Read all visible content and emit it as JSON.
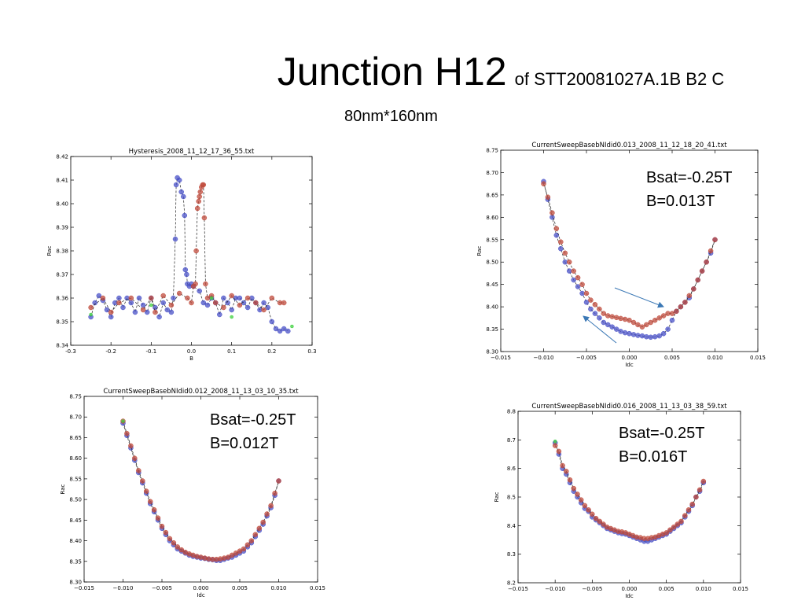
{
  "slide": {
    "title": "Junction H12",
    "title_suffix": "of STT20081027A.1B B2 C",
    "subtitle": "80nm*160nm"
  },
  "colors": {
    "series_blue": "#4a52c8",
    "series_red": "#c04b3c",
    "series_green": "#3fd23f",
    "arrow": "#3b78b5"
  },
  "chart_data": [
    {
      "type": "scatter",
      "title": "Hysteresis_2008_11_12_17_36_55.txt",
      "xlabel": "B",
      "ylabel": "Rac",
      "xlim": [
        -0.3,
        0.3
      ],
      "ylim": [
        8.34,
        8.42
      ],
      "xticks": [
        "-0.3",
        "-0.2",
        "-0.1",
        "0.0",
        "0.1",
        "0.2",
        "0.3"
      ],
      "yticks": [
        "8.34",
        "8.35",
        "8.36",
        "8.37",
        "8.38",
        "8.39",
        "8.40",
        "8.41",
        "8.42"
      ],
      "series": [
        {
          "color": "blue",
          "x": [
            -0.25,
            -0.24,
            -0.23,
            -0.22,
            -0.21,
            -0.2,
            -0.19,
            -0.18,
            -0.17,
            -0.16,
            -0.15,
            -0.14,
            -0.13,
            -0.12,
            -0.11,
            -0.1,
            -0.09,
            -0.08,
            -0.07,
            -0.06,
            -0.05,
            -0.045,
            -0.04,
            -0.038,
            -0.035,
            -0.03,
            -0.025,
            -0.02,
            -0.017,
            -0.015,
            -0.012,
            -0.01,
            -0.005,
            0.0,
            0.005,
            0.02,
            0.03,
            0.04,
            0.05,
            0.06,
            0.07,
            0.08,
            0.09,
            0.1,
            0.11,
            0.12,
            0.13,
            0.14,
            0.15,
            0.16,
            0.17,
            0.18,
            0.19,
            0.2,
            0.21,
            0.22,
            0.23,
            0.24
          ],
          "y": [
            8.352,
            8.358,
            8.361,
            8.359,
            8.355,
            8.352,
            8.358,
            8.36,
            8.356,
            8.36,
            8.358,
            8.354,
            8.36,
            8.357,
            8.354,
            8.36,
            8.356,
            8.352,
            8.358,
            8.355,
            8.354,
            8.36,
            8.385,
            8.408,
            8.411,
            8.41,
            8.405,
            8.403,
            8.395,
            8.372,
            8.37,
            8.366,
            8.365,
            8.366,
            8.365,
            8.363,
            8.358,
            8.357,
            8.36,
            8.358,
            8.353,
            8.36,
            8.358,
            8.355,
            8.36,
            8.36,
            8.358,
            8.356,
            8.36,
            8.358,
            8.355,
            8.358,
            8.356,
            8.35,
            8.347,
            8.346,
            8.347,
            8.346
          ]
        },
        {
          "color": "red",
          "x": [
            -0.25,
            -0.22,
            -0.2,
            -0.18,
            -0.15,
            -0.12,
            -0.1,
            -0.09,
            -0.07,
            -0.05,
            -0.03,
            -0.01,
            0.0,
            0.005,
            0.01,
            0.012,
            0.015,
            0.018,
            0.02,
            0.022,
            0.025,
            0.028,
            0.03,
            0.032,
            0.035,
            0.04,
            0.05,
            0.06,
            0.08,
            0.1,
            0.12,
            0.14,
            0.16,
            0.18,
            0.2,
            0.22,
            0.23
          ],
          "y": [
            8.356,
            8.36,
            8.354,
            8.358,
            8.36,
            8.355,
            8.36,
            8.354,
            8.361,
            8.357,
            8.362,
            8.36,
            8.358,
            8.365,
            8.366,
            8.38,
            8.398,
            8.401,
            8.403,
            8.405,
            8.407,
            8.408,
            8.408,
            8.394,
            8.366,
            8.36,
            8.361,
            8.358,
            8.356,
            8.361,
            8.357,
            8.36,
            8.358,
            8.355,
            8.36,
            8.358,
            8.358
          ]
        },
        {
          "color": "green",
          "x": [
            -0.25,
            -0.1,
            0.05,
            0.1,
            0.25
          ],
          "y": [
            8.353,
            8.357,
            8.36,
            8.352,
            8.348
          ]
        }
      ]
    },
    {
      "type": "scatter",
      "title": "CurrentSweepBasebNIdid0.013_2008_11_12_18_20_41.txt",
      "xlabel": "Idc",
      "ylabel": "Rac",
      "xlim": [
        -0.015,
        0.015
      ],
      "ylim": [
        8.3,
        8.75
      ],
      "xticks": [
        "−0.015",
        "−0.010",
        "−0.005",
        "0.000",
        "0.005",
        "0.010",
        "0.015"
      ],
      "yticks": [
        "8.30",
        "8.35",
        "8.40",
        "8.45",
        "8.50",
        "8.55",
        "8.60",
        "8.65",
        "8.70",
        "8.75"
      ],
      "annotations": [
        "Bsat=-0.25T",
        "B=0.013T"
      ],
      "series": [
        {
          "color": "blue",
          "x": [
            -0.01,
            -0.0095,
            -0.009,
            -0.0085,
            -0.008,
            -0.0075,
            -0.007,
            -0.0065,
            -0.006,
            -0.0055,
            -0.005,
            -0.0045,
            -0.004,
            -0.0035,
            -0.003,
            -0.0025,
            -0.002,
            -0.0015,
            -0.001,
            -0.0005,
            0.0,
            0.0005,
            0.001,
            0.0015,
            0.002,
            0.0025,
            0.003,
            0.0035,
            0.004,
            0.0045,
            0.005,
            0.0055,
            0.006,
            0.0065,
            0.007,
            0.0075,
            0.008,
            0.0085,
            0.009,
            0.0095,
            0.01
          ],
          "y": [
            8.68,
            8.64,
            8.6,
            8.56,
            8.53,
            8.5,
            8.48,
            8.46,
            8.445,
            8.43,
            8.41,
            8.395,
            8.385,
            8.375,
            8.365,
            8.36,
            8.355,
            8.35,
            8.345,
            8.342,
            8.34,
            8.338,
            8.336,
            8.335,
            8.333,
            8.332,
            8.333,
            8.335,
            8.34,
            8.35,
            8.37,
            8.39,
            8.4,
            8.41,
            8.42,
            8.44,
            8.46,
            8.48,
            8.5,
            8.52,
            8.55
          ]
        },
        {
          "color": "red",
          "x": [
            -0.01,
            -0.0095,
            -0.009,
            -0.0085,
            -0.008,
            -0.0075,
            -0.007,
            -0.0065,
            -0.006,
            -0.0055,
            -0.005,
            -0.0045,
            -0.004,
            -0.0035,
            -0.003,
            -0.0025,
            -0.002,
            -0.0015,
            -0.001,
            -0.0005,
            0.0,
            0.0005,
            0.001,
            0.0015,
            0.002,
            0.0025,
            0.003,
            0.0035,
            0.004,
            0.0045,
            0.005,
            0.0055,
            0.006,
            0.0065,
            0.007,
            0.0075,
            0.008,
            0.0085,
            0.009,
            0.0095,
            0.01
          ],
          "y": [
            8.675,
            8.645,
            8.61,
            8.575,
            8.545,
            8.52,
            8.5,
            8.48,
            8.465,
            8.45,
            8.43,
            8.415,
            8.405,
            8.395,
            8.385,
            8.38,
            8.378,
            8.376,
            8.374,
            8.372,
            8.37,
            8.365,
            8.36,
            8.355,
            8.36,
            8.365,
            8.37,
            8.375,
            8.38,
            8.385,
            8.385,
            8.39,
            8.4,
            8.41,
            8.425,
            8.44,
            8.46,
            8.48,
            8.5,
            8.525,
            8.55
          ]
        }
      ]
    },
    {
      "type": "scatter",
      "title": "CurrentSweepBasebNIdid0.012_2008_11_13_03_10_35.txt",
      "xlabel": "Idc",
      "ylabel": "Rac",
      "xlim": [
        -0.015,
        0.015
      ],
      "ylim": [
        8.3,
        8.75
      ],
      "xticks": [
        "−0.015",
        "−0.010",
        "−0.005",
        "0.000",
        "0.005",
        "0.010",
        "0.015"
      ],
      "yticks": [
        "8.30",
        "8.35",
        "8.40",
        "8.45",
        "8.50",
        "8.55",
        "8.60",
        "8.65",
        "8.70",
        "8.75"
      ],
      "annotations": [
        "Bsat=-0.25T",
        "B=0.012T"
      ],
      "series": [
        {
          "color": "blue",
          "x": [
            -0.01,
            -0.0095,
            -0.009,
            -0.0085,
            -0.008,
            -0.0075,
            -0.007,
            -0.0065,
            -0.006,
            -0.0055,
            -0.005,
            -0.0045,
            -0.004,
            -0.0035,
            -0.003,
            -0.0025,
            -0.002,
            -0.0015,
            -0.001,
            -0.0005,
            0.0,
            0.0005,
            0.001,
            0.0015,
            0.002,
            0.0025,
            0.003,
            0.0035,
            0.004,
            0.0045,
            0.005,
            0.0055,
            0.006,
            0.0065,
            0.007,
            0.0075,
            0.008,
            0.0085,
            0.009,
            0.0095,
            0.01
          ],
          "y": [
            8.685,
            8.655,
            8.625,
            8.595,
            8.565,
            8.54,
            8.515,
            8.49,
            8.47,
            8.45,
            8.43,
            8.415,
            8.4,
            8.39,
            8.38,
            8.375,
            8.37,
            8.365,
            8.362,
            8.36,
            8.358,
            8.357,
            8.355,
            8.354,
            8.352,
            8.352,
            8.355,
            8.358,
            8.36,
            8.365,
            8.37,
            8.375,
            8.385,
            8.395,
            8.41,
            8.425,
            8.44,
            8.46,
            8.48,
            8.51,
            8.545
          ]
        },
        {
          "color": "red",
          "x": [
            -0.01,
            -0.0095,
            -0.009,
            -0.0085,
            -0.008,
            -0.0075,
            -0.007,
            -0.0065,
            -0.006,
            -0.0055,
            -0.005,
            -0.0045,
            -0.004,
            -0.0035,
            -0.003,
            -0.0025,
            -0.002,
            -0.0015,
            -0.001,
            -0.0005,
            0.0,
            0.0005,
            0.001,
            0.0015,
            0.002,
            0.0025,
            0.003,
            0.0035,
            0.004,
            0.0045,
            0.005,
            0.0055,
            0.006,
            0.0065,
            0.007,
            0.0075,
            0.008,
            0.0085,
            0.009,
            0.0095,
            0.01
          ],
          "y": [
            8.69,
            8.66,
            8.63,
            8.6,
            8.57,
            8.545,
            8.52,
            8.495,
            8.475,
            8.455,
            8.435,
            8.42,
            8.405,
            8.395,
            8.385,
            8.378,
            8.372,
            8.368,
            8.365,
            8.362,
            8.36,
            8.358,
            8.356,
            8.355,
            8.355,
            8.356,
            8.358,
            8.36,
            8.365,
            8.37,
            8.375,
            8.38,
            8.39,
            8.4,
            8.415,
            8.43,
            8.445,
            8.465,
            8.485,
            8.515,
            8.545
          ]
        },
        {
          "color": "green",
          "x": [
            -0.01
          ],
          "y": [
            8.69
          ]
        }
      ]
    },
    {
      "type": "scatter",
      "title": "CurrentSweepBasebNIdid0.016_2008_11_13_03_38_59.txt",
      "xlabel": "Idc",
      "ylabel": "Rac",
      "xlim": [
        -0.015,
        0.015
      ],
      "ylim": [
        8.2,
        8.8
      ],
      "xticks": [
        "−0.015",
        "−0.010",
        "−0.005",
        "0.000",
        "0.005",
        "0.010",
        "0.015"
      ],
      "yticks": [
        "8.2",
        "8.3",
        "8.4",
        "8.5",
        "8.6",
        "8.7",
        "8.8"
      ],
      "annotations": [
        "Bsat=-0.25T",
        "B=0.016T"
      ],
      "series": [
        {
          "color": "blue",
          "x": [
            -0.01,
            -0.0095,
            -0.009,
            -0.0085,
            -0.008,
            -0.0075,
            -0.007,
            -0.0065,
            -0.006,
            -0.0055,
            -0.005,
            -0.0045,
            -0.004,
            -0.0035,
            -0.003,
            -0.0025,
            -0.002,
            -0.0015,
            -0.001,
            -0.0005,
            0.0,
            0.0005,
            0.001,
            0.0015,
            0.002,
            0.0025,
            0.003,
            0.0035,
            0.004,
            0.0045,
            0.005,
            0.0055,
            0.006,
            0.0065,
            0.007,
            0.0075,
            0.008,
            0.0085,
            0.009,
            0.0095,
            0.01
          ],
          "y": [
            8.69,
            8.65,
            8.6,
            8.58,
            8.55,
            8.52,
            8.5,
            8.48,
            8.46,
            8.45,
            8.43,
            8.42,
            8.41,
            8.4,
            8.39,
            8.385,
            8.38,
            8.375,
            8.372,
            8.37,
            8.365,
            8.36,
            8.355,
            8.35,
            8.345,
            8.345,
            8.35,
            8.355,
            8.36,
            8.365,
            8.37,
            8.38,
            8.39,
            8.4,
            8.41,
            8.43,
            8.45,
            8.47,
            8.5,
            8.52,
            8.55
          ]
        },
        {
          "color": "red",
          "x": [
            -0.01,
            -0.0095,
            -0.009,
            -0.0085,
            -0.008,
            -0.0075,
            -0.007,
            -0.0065,
            -0.006,
            -0.0055,
            -0.005,
            -0.0045,
            -0.004,
            -0.0035,
            -0.003,
            -0.0025,
            -0.002,
            -0.0015,
            -0.001,
            -0.0005,
            0.0,
            0.0005,
            0.001,
            0.0015,
            0.002,
            0.0025,
            0.003,
            0.0035,
            0.004,
            0.0045,
            0.005,
            0.0055,
            0.006,
            0.0065,
            0.007,
            0.0075,
            0.008,
            0.0085,
            0.009,
            0.0095,
            0.01
          ],
          "y": [
            8.68,
            8.66,
            8.61,
            8.59,
            8.56,
            8.53,
            8.51,
            8.49,
            8.47,
            8.455,
            8.44,
            8.425,
            8.415,
            8.405,
            8.395,
            8.39,
            8.385,
            8.38,
            8.378,
            8.375,
            8.37,
            8.365,
            8.36,
            8.358,
            8.355,
            8.355,
            8.358,
            8.36,
            8.365,
            8.37,
            8.375,
            8.385,
            8.395,
            8.405,
            8.415,
            8.435,
            8.455,
            8.475,
            8.5,
            8.525,
            8.555
          ]
        },
        {
          "color": "green",
          "x": [
            -0.01
          ],
          "y": [
            8.695
          ]
        }
      ]
    }
  ]
}
